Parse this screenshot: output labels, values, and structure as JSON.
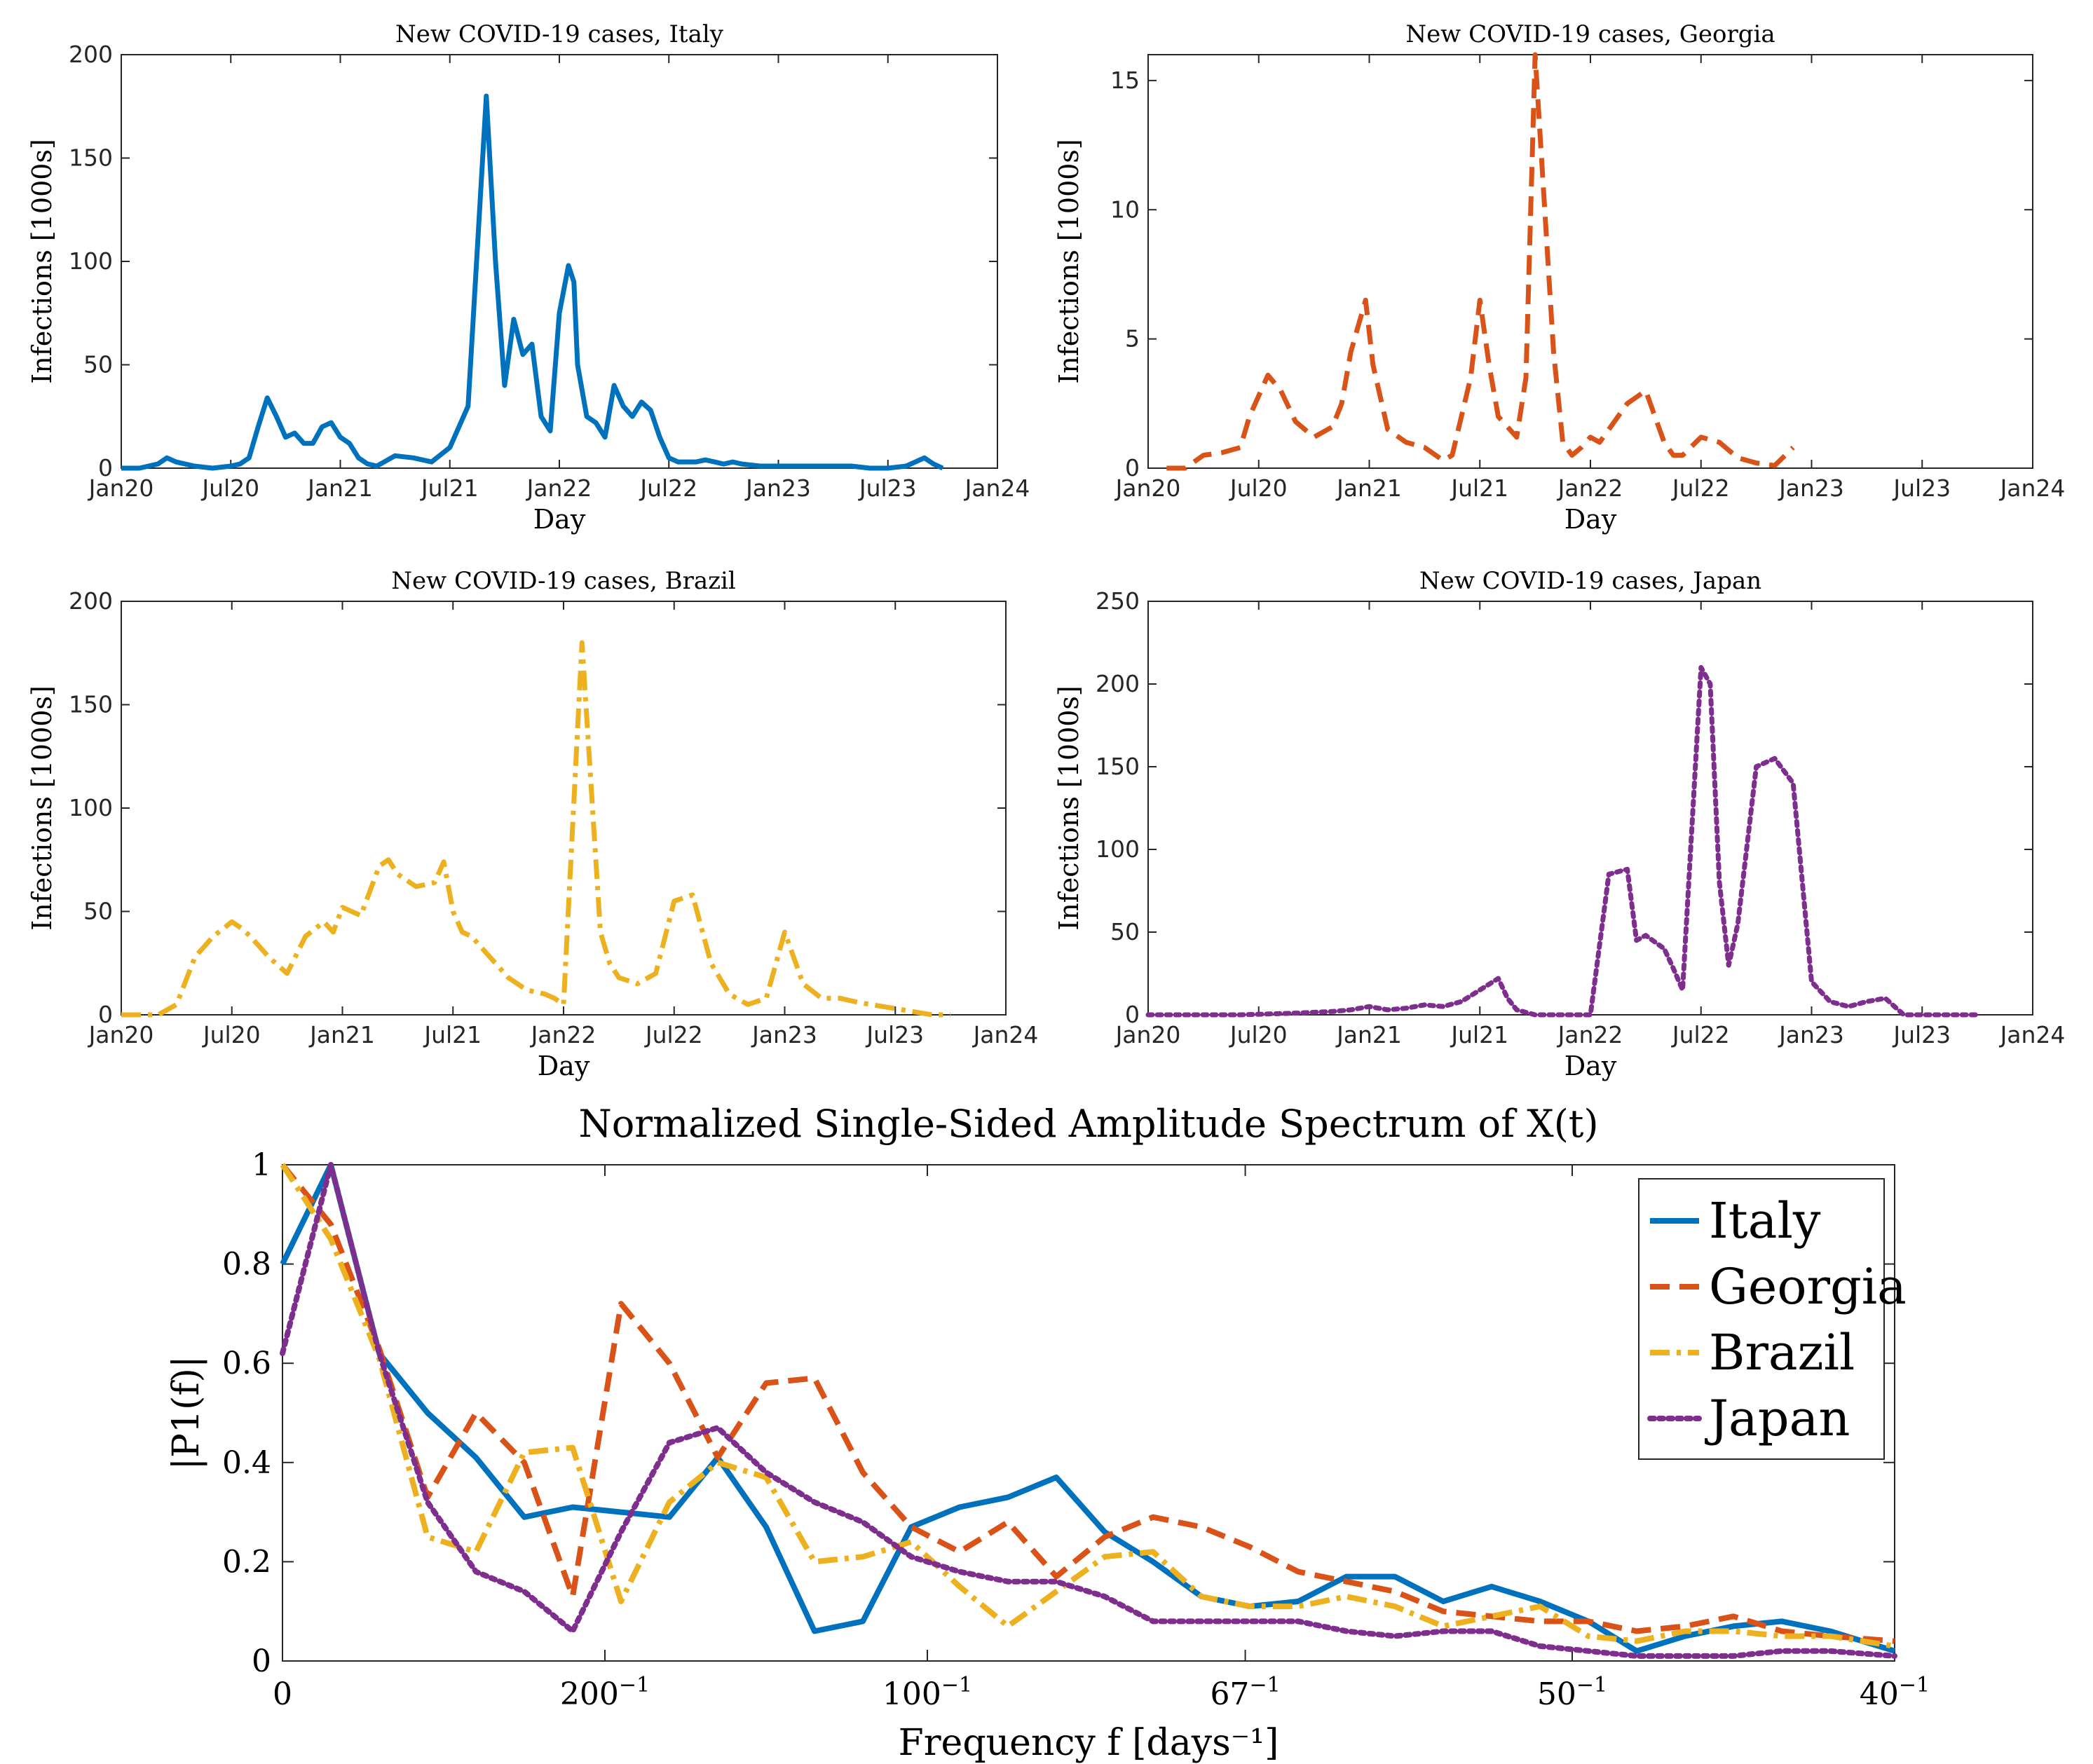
{
  "colors": {
    "Italy": "#0072BD",
    "Georgia": "#D95319",
    "Brazil": "#EDB120",
    "Japan": "#7E2F8E",
    "axis": "#262626"
  },
  "chart_data": [
    {
      "type": "line",
      "title": "New COVID-19 cases, Italy",
      "xlabel": "Day",
      "ylabel": "Infections [1000s]",
      "xticks": [
        "Jan20",
        "Jul20",
        "Jan21",
        "Jul21",
        "Jan22",
        "Jul22",
        "Jan23",
        "Jul23",
        "Jan24"
      ],
      "xlim": [
        0,
        48
      ],
      "ylim": [
        0,
        200
      ],
      "yticks": [
        "0",
        "50",
        "100",
        "150",
        "200"
      ],
      "series": [
        {
          "name": "Italy",
          "style": "solid",
          "x": [
            0,
            1,
            1.5,
            2,
            2.5,
            3,
            4,
            5,
            6,
            6.5,
            7,
            7.5,
            8,
            8.5,
            9,
            9.5,
            10,
            10.5,
            11,
            11.5,
            12,
            12.5,
            13,
            13.5,
            14,
            15,
            16,
            17,
            18,
            19,
            20,
            20.5,
            21,
            21.5,
            22,
            22.5,
            23,
            23.5,
            24,
            24.5,
            24.8,
            25,
            25.5,
            26,
            26.5,
            27,
            27.5,
            28,
            28.5,
            29,
            29.5,
            30,
            30.5,
            31,
            31.5,
            32,
            32.5,
            33,
            33.5,
            34,
            35,
            36,
            37,
            38,
            39,
            40,
            41,
            42,
            43,
            44,
            44.5,
            45
          ],
          "y": [
            0,
            0,
            1,
            2,
            5,
            3,
            1,
            0,
            1,
            2,
            5,
            20,
            34,
            25,
            15,
            17,
            12,
            12,
            20,
            22,
            15,
            12,
            5,
            2,
            1,
            6,
            5,
            3,
            10,
            30,
            180,
            100,
            40,
            72,
            55,
            60,
            25,
            18,
            75,
            98,
            90,
            50,
            25,
            22,
            15,
            40,
            30,
            25,
            32,
            28,
            15,
            5,
            3,
            3,
            3,
            4,
            3,
            2,
            3,
            2,
            1,
            1,
            1,
            1,
            1,
            1,
            0,
            0,
            1,
            5,
            2,
            0
          ]
        }
      ]
    },
    {
      "type": "line",
      "title": "New COVID-19 cases, Georgia",
      "xlabel": "Day",
      "ylabel": "Infections [1000s]",
      "xticks": [
        "Jan20",
        "Jul20",
        "Jan21",
        "Jul21",
        "Jan22",
        "Jul22",
        "Jan23",
        "Jul23",
        "Jan24"
      ],
      "xlim": [
        0,
        48
      ],
      "ylim": [
        0,
        16
      ],
      "yticks": [
        "0",
        "5",
        "10",
        "15"
      ],
      "series": [
        {
          "name": "Georgia",
          "style": "dashed",
          "x": [
            1,
            2,
            3,
            4,
            5,
            5.5,
            6.5,
            7.2,
            8,
            9,
            10,
            10.5,
            11,
            11.8,
            12.2,
            13,
            14,
            15,
            16,
            16.5,
            17.5,
            18,
            18.5,
            19,
            20,
            20.5,
            21,
            22,
            22.5,
            23,
            23.5,
            24,
            24.5,
            25,
            26,
            27,
            28,
            28.5,
            29,
            30,
            31,
            32,
            33,
            34,
            35
          ],
          "y": [
            0,
            0,
            0.5,
            0.6,
            0.8,
            2,
            3.6,
            3,
            1.8,
            1.2,
            1.6,
            2.5,
            4.5,
            6.5,
            4,
            1.5,
            1.0,
            0.8,
            0.3,
            0.5,
            3.5,
            6.5,
            4,
            2,
            1.2,
            3.5,
            16,
            4.5,
            1.0,
            0.5,
            0.8,
            1.2,
            1.0,
            1.5,
            2.5,
            3,
            1.0,
            0.5,
            0.5,
            1.2,
            1.0,
            0.4,
            0.2,
            0.1,
            0.8
          ]
        }
      ]
    },
    {
      "type": "line",
      "title": "New COVID-19 cases, Brazil",
      "xlabel": "Day",
      "ylabel": "Infections [1000s]",
      "xticks": [
        "Jan20",
        "Jul20",
        "Jan21",
        "Jul21",
        "Jan22",
        "Jul22",
        "Jan23",
        "Jul23",
        "Jan24"
      ],
      "xlim": [
        0,
        48
      ],
      "ylim": [
        0,
        200
      ],
      "yticks": [
        "0",
        "50",
        "100",
        "150",
        "200"
      ],
      "series": [
        {
          "name": "Brazil",
          "style": "dashdot",
          "x": [
            0,
            1,
            2,
            3,
            4,
            5,
            6,
            6.5,
            7,
            8,
            9,
            10,
            11,
            11.5,
            12,
            13,
            14,
            14.5,
            15,
            16,
            17,
            17.5,
            18,
            18.5,
            19,
            20,
            21,
            22,
            23,
            23.5,
            24,
            25,
            26,
            26.5,
            27,
            28,
            29,
            30,
            31,
            32,
            33,
            34,
            35,
            36,
            37,
            38,
            39,
            40,
            42,
            44,
            45
          ],
          "y": [
            0,
            0,
            0,
            5,
            28,
            38,
            45,
            42,
            38,
            28,
            20,
            38,
            45,
            40,
            52,
            48,
            72,
            75,
            68,
            62,
            64,
            74,
            50,
            40,
            38,
            28,
            18,
            12,
            10,
            8,
            5,
            180,
            40,
            25,
            18,
            15,
            20,
            55,
            58,
            25,
            10,
            5,
            8,
            40,
            15,
            8,
            8,
            6,
            3,
            0,
            0
          ]
        }
      ]
    },
    {
      "type": "line",
      "title": "New COVID-19 cases, Japan",
      "xlabel": "Day",
      "ylabel": "Infections [1000s]",
      "xticks": [
        "Jan20",
        "Jul20",
        "Jan21",
        "Jul21",
        "Jan22",
        "Jul22",
        "Jan23",
        "Jul23",
        "Jan24"
      ],
      "xlim": [
        0,
        48
      ],
      "ylim": [
        0,
        250
      ],
      "yticks": [
        "0",
        "50",
        "100",
        "150",
        "200",
        "250"
      ],
      "series": [
        {
          "name": "Japan",
          "style": "dotted",
          "x": [
            0,
            5,
            8,
            10,
            11,
            12,
            13,
            14,
            15,
            16,
            17,
            18,
            19,
            19.5,
            20,
            21,
            22,
            24,
            25,
            26,
            26.5,
            27,
            28,
            28.5,
            29,
            30,
            30.5,
            31,
            31.5,
            32,
            33,
            34,
            35,
            36,
            37,
            38,
            39,
            40,
            41,
            42,
            43,
            44,
            45
          ],
          "y": [
            0,
            0,
            1,
            2,
            3,
            5,
            3,
            4,
            6,
            5,
            8,
            15,
            22,
            10,
            3,
            0,
            0,
            0,
            85,
            88,
            45,
            48,
            40,
            28,
            15,
            210,
            200,
            80,
            30,
            55,
            150,
            155,
            140,
            20,
            8,
            5,
            8,
            10,
            0,
            0,
            0,
            0,
            0
          ]
        }
      ]
    },
    {
      "type": "line",
      "title": "Normalized Single-Sided Amplitude Spectrum of X(t)",
      "title_math": "X(t)",
      "xlabel": "Frequency f [days⁻¹]",
      "ylabel": "|P1(f)|",
      "xlim": [
        0,
        0.025
      ],
      "ylim": [
        0,
        1
      ],
      "xticks": [
        {
          "value": 0,
          "base": "0",
          "exp": ""
        },
        {
          "value": 0.005,
          "base": "200",
          "exp": "−1"
        },
        {
          "value": 0.01,
          "base": "100",
          "exp": "−1"
        },
        {
          "value": 0.01493,
          "base": "67",
          "exp": "−1"
        },
        {
          "value": 0.02,
          "base": "50",
          "exp": "−1"
        },
        {
          "value": 0.025,
          "base": "40",
          "exp": "−1"
        }
      ],
      "yticks": [
        "0",
        "0.2",
        "0.4",
        "0.6",
        "0.8",
        "1"
      ],
      "x": [
        0,
        0.00075,
        0.0015,
        0.00225,
        0.003,
        0.00375,
        0.0045,
        0.00525,
        0.006,
        0.00675,
        0.0075,
        0.00825,
        0.009,
        0.00975,
        0.0105,
        0.01125,
        0.012,
        0.01275,
        0.0135,
        0.01425,
        0.015,
        0.01575,
        0.0165,
        0.01725,
        0.018,
        0.01875,
        0.0195,
        0.02025,
        0.021,
        0.02175,
        0.0225,
        0.02325,
        0.024,
        0.025
      ],
      "legend_position": "top-right",
      "series": [
        {
          "name": "Italy",
          "style": "solid",
          "values": [
            0.8,
            1.0,
            0.62,
            0.5,
            0.41,
            0.29,
            0.31,
            0.3,
            0.29,
            0.41,
            0.27,
            0.06,
            0.08,
            0.27,
            0.31,
            0.33,
            0.37,
            0.26,
            0.2,
            0.13,
            0.11,
            0.12,
            0.17,
            0.17,
            0.12,
            0.15,
            0.12,
            0.08,
            0.02,
            0.05,
            0.07,
            0.08,
            0.06,
            0.02
          ]
        },
        {
          "name": "Georgia",
          "style": "dashed",
          "values": [
            1.0,
            0.88,
            0.63,
            0.33,
            0.5,
            0.4,
            0.13,
            0.72,
            0.6,
            0.41,
            0.56,
            0.57,
            0.38,
            0.27,
            0.22,
            0.28,
            0.17,
            0.25,
            0.29,
            0.27,
            0.23,
            0.18,
            0.16,
            0.14,
            0.1,
            0.09,
            0.08,
            0.08,
            0.06,
            0.07,
            0.09,
            0.06,
            0.05,
            0.04
          ]
        },
        {
          "name": "Brazil",
          "style": "dashdot",
          "values": [
            1.0,
            0.85,
            0.61,
            0.25,
            0.22,
            0.42,
            0.43,
            0.12,
            0.32,
            0.4,
            0.37,
            0.2,
            0.21,
            0.24,
            0.15,
            0.07,
            0.14,
            0.21,
            0.22,
            0.13,
            0.11,
            0.11,
            0.13,
            0.11,
            0.07,
            0.09,
            0.11,
            0.05,
            0.04,
            0.06,
            0.06,
            0.05,
            0.05,
            0.03
          ]
        },
        {
          "name": "Japan",
          "style": "dotted",
          "values": [
            0.62,
            1.0,
            0.62,
            0.32,
            0.18,
            0.14,
            0.06,
            0.26,
            0.44,
            0.47,
            0.38,
            0.32,
            0.28,
            0.21,
            0.18,
            0.16,
            0.16,
            0.13,
            0.08,
            0.08,
            0.08,
            0.08,
            0.06,
            0.05,
            0.06,
            0.06,
            0.03,
            0.02,
            0.01,
            0.01,
            0.01,
            0.02,
            0.02,
            0.01
          ]
        }
      ]
    }
  ]
}
